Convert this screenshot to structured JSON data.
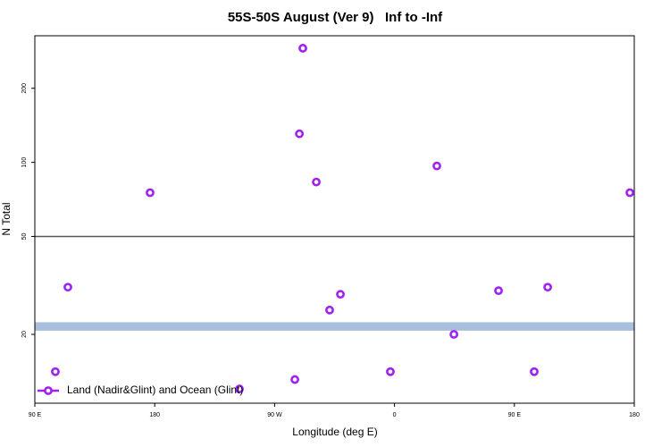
{
  "chart_data": {
    "type": "scatter",
    "title": "55S-50S August (Ver 9)   Inf to -Inf",
    "x_label": "Longitude (deg E)",
    "y_label": "N Total",
    "xlim": [
      90,
      540
    ],
    "xticks": [
      {
        "value": 90,
        "label": "90 E"
      },
      180,
      {
        "value": 270,
        "label": "90 W"
      },
      {
        "value": 360,
        "label": "0"
      },
      {
        "value": 450,
        "label": "90 E"
      },
      {
        "value": 540,
        "label": "180"
      }
    ],
    "ylim": [
      10.5,
      327
    ],
    "yticks": [
      20,
      50,
      100,
      200
    ],
    "y_log": true,
    "hline": 50,
    "band": [
      20.7,
      22.4
    ],
    "band_color": "#a8bedc",
    "legend": "bottom-left",
    "series": [
      {
        "name": "Land (Nadir&Glint) and Ocean (Glint)",
        "color": "#a020f0",
        "x": [
          105.4,
          114.8,
          176.5,
          243.6,
          285.2,
          288.6,
          291.2,
          301.3,
          311.3,
          319.4,
          356.9,
          391.8,
          404.6,
          438.1,
          464.9,
          475.0,
          536.7
        ],
        "values": [
          14.1,
          31.1,
          75.3,
          12.0,
          13.1,
          130.6,
          291,
          83.2,
          25.1,
          29.1,
          14.1,
          96.7,
          20,
          30.1,
          14.1,
          31.1,
          75.3
        ]
      }
    ]
  }
}
